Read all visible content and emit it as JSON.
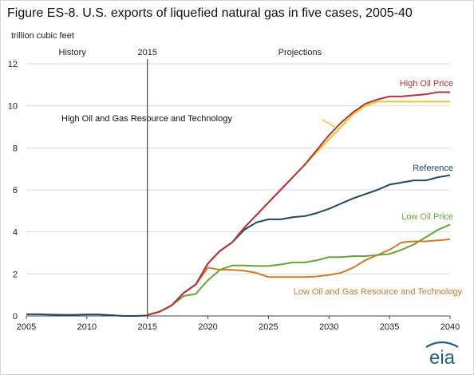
{
  "title": "Figure ES-8. U.S. exports of liquefied natural gas in five cases, 2005-40",
  "unit_label": "trillion cubic feet",
  "logo_text": "eia",
  "colors": {
    "high_oil_price": "#b0323c",
    "high_resource": "#f5c518",
    "reference": "#1e4766",
    "low_oil_price": "#6aa33a",
    "low_resource": "#d4782a",
    "history": "#1e4766",
    "grid": "#d9d9d9",
    "logo": "#1f5f8c"
  },
  "chart_data": {
    "type": "line",
    "title": "Figure ES-8. U.S. exports of liquefied natural gas in five cases, 2005-40",
    "ylabel": "trillion cubic feet",
    "xlabel": "",
    "xlim": [
      2005,
      2040
    ],
    "ylim": [
      0,
      12
    ],
    "x_ticks": [
      2005,
      2010,
      2015,
      2020,
      2025,
      2030,
      2035,
      2040
    ],
    "y_ticks": [
      0,
      2,
      4,
      6,
      8,
      10,
      12
    ],
    "grid": "horizontal",
    "divider": {
      "x": 2015,
      "label": "2015",
      "left_label": "History",
      "right_label": "Projections"
    },
    "history": {
      "x": [
        2005,
        2006,
        2007,
        2008,
        2009,
        2010,
        2011,
        2012,
        2013,
        2014,
        2015
      ],
      "values": [
        0.08,
        0.08,
        0.06,
        0.05,
        0.05,
        0.07,
        0.07,
        0.04,
        0.0,
        0.0,
        0.02
      ]
    },
    "series": [
      {
        "name": "High Oil Price",
        "color_key": "high_oil_price",
        "x": [
          2015,
          2016,
          2017,
          2018,
          2019,
          2020,
          2021,
          2022,
          2023,
          2024,
          2025,
          2026,
          2027,
          2028,
          2029,
          2030,
          2031,
          2032,
          2033,
          2034,
          2035,
          2036,
          2037,
          2038,
          2039,
          2040
        ],
        "values": [
          0.05,
          0.2,
          0.5,
          1.1,
          1.5,
          2.5,
          3.1,
          3.5,
          4.2,
          4.8,
          5.4,
          6.0,
          6.6,
          7.2,
          7.9,
          8.6,
          9.2,
          9.7,
          10.1,
          10.3,
          10.45,
          10.45,
          10.5,
          10.55,
          10.65,
          10.65
        ]
      },
      {
        "name": "High Oil and Gas Resource and Technology",
        "color_key": "high_resource",
        "x": [
          2015,
          2016,
          2017,
          2018,
          2019,
          2020,
          2021,
          2022,
          2023,
          2024,
          2025,
          2026,
          2027,
          2028,
          2029,
          2030,
          2031,
          2032,
          2033,
          2034,
          2035,
          2036,
          2037,
          2038,
          2039,
          2040
        ],
        "values": [
          0.05,
          0.2,
          0.5,
          1.1,
          1.5,
          2.5,
          3.1,
          3.5,
          4.2,
          4.8,
          5.4,
          6.0,
          6.6,
          7.2,
          7.8,
          8.4,
          9.0,
          9.6,
          10.0,
          10.2,
          10.2,
          10.2,
          10.2,
          10.2,
          10.2,
          10.2
        ]
      },
      {
        "name": "Reference",
        "color_key": "reference",
        "x": [
          2015,
          2016,
          2017,
          2018,
          2019,
          2020,
          2021,
          2022,
          2023,
          2024,
          2025,
          2026,
          2027,
          2028,
          2029,
          2030,
          2031,
          2032,
          2033,
          2034,
          2035,
          2036,
          2037,
          2038,
          2039,
          2040
        ],
        "values": [
          0.05,
          0.2,
          0.5,
          1.1,
          1.5,
          2.5,
          3.1,
          3.5,
          4.1,
          4.45,
          4.6,
          4.6,
          4.7,
          4.75,
          4.9,
          5.1,
          5.35,
          5.6,
          5.8,
          6.0,
          6.25,
          6.35,
          6.45,
          6.45,
          6.6,
          6.7
        ]
      },
      {
        "name": "Low Oil Price",
        "color_key": "low_oil_price",
        "x": [
          2015,
          2016,
          2017,
          2018,
          2019,
          2020,
          2021,
          2022,
          2023,
          2024,
          2025,
          2026,
          2027,
          2028,
          2029,
          2030,
          2031,
          2032,
          2033,
          2034,
          2035,
          2036,
          2037,
          2038,
          2039,
          2040
        ],
        "values": [
          0.05,
          0.2,
          0.5,
          0.95,
          1.05,
          1.7,
          2.2,
          2.4,
          2.4,
          2.38,
          2.38,
          2.45,
          2.55,
          2.55,
          2.65,
          2.8,
          2.8,
          2.85,
          2.85,
          2.9,
          2.95,
          3.15,
          3.4,
          3.75,
          4.1,
          4.35
        ]
      },
      {
        "name": "Low Oil and Gas Resource and Technology",
        "color_key": "low_resource",
        "x": [
          2015,
          2016,
          2017,
          2018,
          2019,
          2020,
          2021,
          2022,
          2023,
          2024,
          2025,
          2026,
          2027,
          2028,
          2029,
          2030,
          2031,
          2032,
          2033,
          2034,
          2035,
          2036,
          2037,
          2038,
          2039,
          2040
        ],
        "values": [
          0.05,
          0.2,
          0.5,
          1.1,
          1.5,
          2.3,
          2.2,
          2.2,
          2.15,
          2.05,
          1.85,
          1.85,
          1.85,
          1.85,
          1.88,
          1.95,
          2.05,
          2.3,
          2.65,
          2.9,
          3.15,
          3.5,
          3.55,
          3.55,
          3.6,
          3.65
        ]
      }
    ],
    "annotations": [
      {
        "text": "High Oil Price",
        "series": "High Oil Price"
      },
      {
        "text": "High Oil and Gas Resource and Technology",
        "series": "High Oil and Gas Resource and Technology"
      },
      {
        "text": "Reference",
        "series": "Reference"
      },
      {
        "text": "Low Oil Price",
        "series": "Low Oil Price"
      },
      {
        "text": "Low Oil and Gas Resource and Technology",
        "series": "Low Oil and Gas Resource and Technology"
      }
    ]
  }
}
